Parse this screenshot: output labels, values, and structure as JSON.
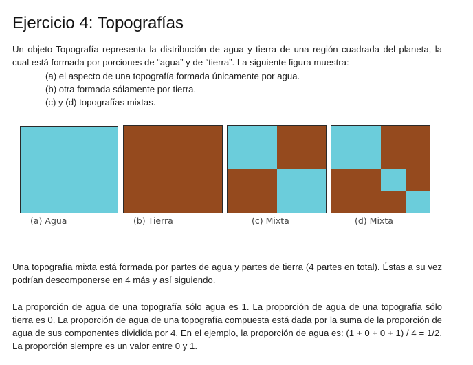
{
  "title": "Ejercicio 4: Topografías",
  "intro": "Un objeto Topografía representa la distribución de agua y tierra de una región cuadrada del planeta, la cual está formada por porciones de “agua” y de “tierra”. La siguiente figura muestra:",
  "items": [
    "(a) el aspecto de una topografía formada únicamente por agua.",
    "(b) otra formada sólamente por tierra.",
    "(c) y (d) topografías mixtas."
  ],
  "colors": {
    "agua": "#6bcddb",
    "tierra": "#954a1e",
    "border": "#2a2a2a"
  },
  "figure": {
    "captions": [
      "(a) Agua",
      "(b) Tierra",
      "(c) Mixta",
      "(d) Mixta"
    ]
  },
  "paragraph2": "Una topografía mixta está formada por partes de agua y partes de tierra (4 partes en total). Éstas a su vez podrían descomponerse en 4 más y así siguiendo.",
  "paragraph3": "La proporción de agua de una topografía sólo agua es 1. La proporción de agua de una topografía sólo tierra es 0. La proporción de agua de una topografía compuesta está dada por la suma de la proporción de agua de sus componentes dividida por 4. En el ejemplo, la proporción de agua es:  (1 + 0 + 0 + 1) / 4 = 1/2. La proporción siempre es un valor entre 0 y 1."
}
